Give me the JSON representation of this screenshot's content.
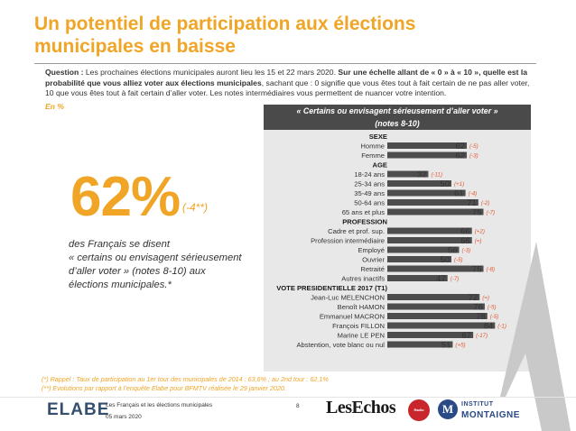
{
  "title": "Un potentiel de participation aux élections municipales en baisse",
  "question": {
    "label": "Question : ",
    "text1": "Les prochaines élections municipales auront lieu les 15 et 22 mars 2020. ",
    "bold1": "Sur une échelle allant de « 0 » à « 10 », quelle est la probabilité que vous alliez voter aux élections municipales",
    "text2": ", sachant que : 0 signifie que vous êtes tout à fait certain de ne pas aller voter, 10 que vous êtes tout à fait certain d’aller voter. Les notes intermédiaires vous permettent de nuancer votre intention."
  },
  "unit_label": "En %",
  "highlight": {
    "value": "62%",
    "delta": "(-4**)",
    "desc1": "des Français se disent",
    "desc2": "« certains ou envisagent sérieusement",
    "desc3": "d’aller voter » (notes 8-10) aux",
    "desc4": "élections municipales.*"
  },
  "chart_header": {
    "line1": "« Certains ou envisagent sérieusement d’aller voter »",
    "line2": "(notes 8-10)"
  },
  "chart_data": {
    "type": "bar",
    "orientation": "horizontal",
    "xlim": [
      0,
      100
    ],
    "groups": [
      {
        "header": "SEXE",
        "rows": [
          {
            "label": "Homme",
            "value": 62,
            "delta": "(-5)"
          },
          {
            "label": "Femme",
            "value": 62,
            "delta": "(-3)"
          }
        ]
      },
      {
        "header": "AGE",
        "rows": [
          {
            "label": "18-24 ans",
            "value": 32,
            "delta": "(-11)"
          },
          {
            "label": "25-34 ans",
            "value": 50,
            "delta": "(+1)"
          },
          {
            "label": "35-49 ans",
            "value": 61,
            "delta": "(-4)"
          },
          {
            "label": "50-64 ans",
            "value": 71,
            "delta": "(-2)"
          },
          {
            "label": "65 ans et plus",
            "value": 75,
            "delta": "(-7)"
          }
        ]
      },
      {
        "header": "PROFESSION",
        "rows": [
          {
            "label": "Cadre et prof. sup.",
            "value": 66,
            "delta": "(+2)"
          },
          {
            "label": "Profession intermédiaire",
            "value": 66,
            "delta": "(=)"
          },
          {
            "label": "Employé",
            "value": 56,
            "delta": "(-3)"
          },
          {
            "label": "Ouvrier",
            "value": 50,
            "delta": "(-5)"
          },
          {
            "label": "Retraité",
            "value": 75,
            "delta": "(-8)"
          },
          {
            "label": "Autres inactifs",
            "value": 47,
            "delta": "(-7)"
          }
        ]
      },
      {
        "header": "VOTE PRESIDENTIELLE 2017 (T1)",
        "rows": [
          {
            "label": "Jean-Luc MELENCHON",
            "value": 72,
            "delta": "(=)"
          },
          {
            "label": "Benoît HAMON",
            "value": 76,
            "delta": "(-5)"
          },
          {
            "label": "Emmanuel MACRON",
            "value": 78,
            "delta": "(-5)"
          },
          {
            "label": "François FILLON",
            "value": 84,
            "delta": "(-1)"
          },
          {
            "label": "Marine LE PEN",
            "value": 67,
            "delta": "(-17)"
          },
          {
            "label": "Abstention, vote blanc ou nul",
            "value": 51,
            "delta": "(+5)"
          }
        ]
      }
    ]
  },
  "footnotes": {
    "line1": "(*) Rappel : Taux de participation au 1er tour des municipales de 2014 : 63,6% ; au 2nd tour : 62,1%",
    "line2": "(**) Evolutions par rapport à l’enquête Elabe pour BFMTV réalisée le 29 janvier 2020."
  },
  "footer": {
    "logo": "ELABE",
    "study": "Les Français et les élections municipales",
    "date": "05 mars 2020",
    "page": "8",
    "partner1": "LesEchos",
    "partner2": "Radio Classique",
    "partner3_mark": "M",
    "partner3_line1": "INSTITUT",
    "partner3_line2": "MONTAIGNE"
  },
  "colors": {
    "accent": "#f0a526",
    "bar": "#4d4d4d",
    "delta": "#e4572e",
    "panel": "#e8e8e8",
    "header": "#4a4a4a"
  }
}
